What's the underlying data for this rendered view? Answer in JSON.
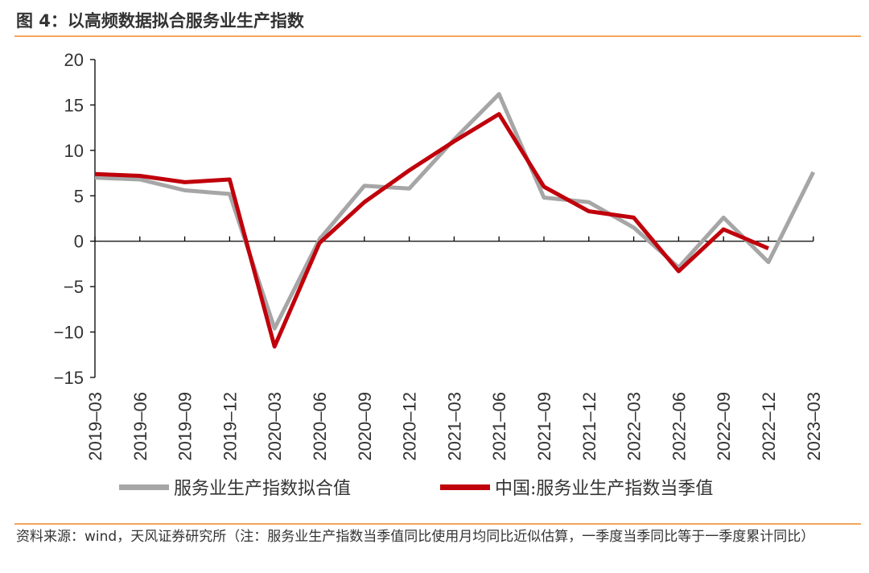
{
  "header": {
    "title": "图 4：以高频数据拟合服务业生产指数"
  },
  "source": {
    "text": "资料来源：wind，天风证券研究所（注：服务业生产指数当季值同比使用月均同比近似估算，一季度当季同比等于一季度累计同比）"
  },
  "chart_data": {
    "type": "line",
    "categories": [
      "2019-03",
      "2019-06",
      "2019-09",
      "2019-12",
      "2020-03",
      "2020-06",
      "2020-09",
      "2020-12",
      "2021-03",
      "2021-06",
      "2021-09",
      "2021-12",
      "2022-03",
      "2022-06",
      "2022-09",
      "2022-12",
      "2023-03"
    ],
    "series": [
      {
        "name": "服务业生产指数拟合值",
        "color": "#a6a6a6",
        "values": [
          7.0,
          6.8,
          5.6,
          5.2,
          -9.6,
          0.2,
          6.1,
          5.8,
          11.2,
          16.2,
          4.8,
          4.3,
          1.5,
          -2.9,
          2.6,
          -2.3,
          7.6
        ]
      },
      {
        "name": "中国:服务业生产指数当季值",
        "color": "#c0000b",
        "values": [
          7.4,
          7.2,
          6.5,
          6.8,
          -11.6,
          -0.2,
          4.3,
          7.8,
          11.0,
          14.0,
          6.0,
          3.3,
          2.6,
          -3.3,
          1.3,
          -0.8,
          null
        ]
      }
    ],
    "ylim": [
      -15,
      20
    ],
    "yticks": [
      20,
      15,
      10,
      5,
      0,
      -5,
      -10,
      -15
    ],
    "ytick_labels": [
      "20",
      "15",
      "10",
      "5",
      "0",
      "−5",
      "−10",
      "−15"
    ],
    "legend": "bottom",
    "grid": false
  }
}
